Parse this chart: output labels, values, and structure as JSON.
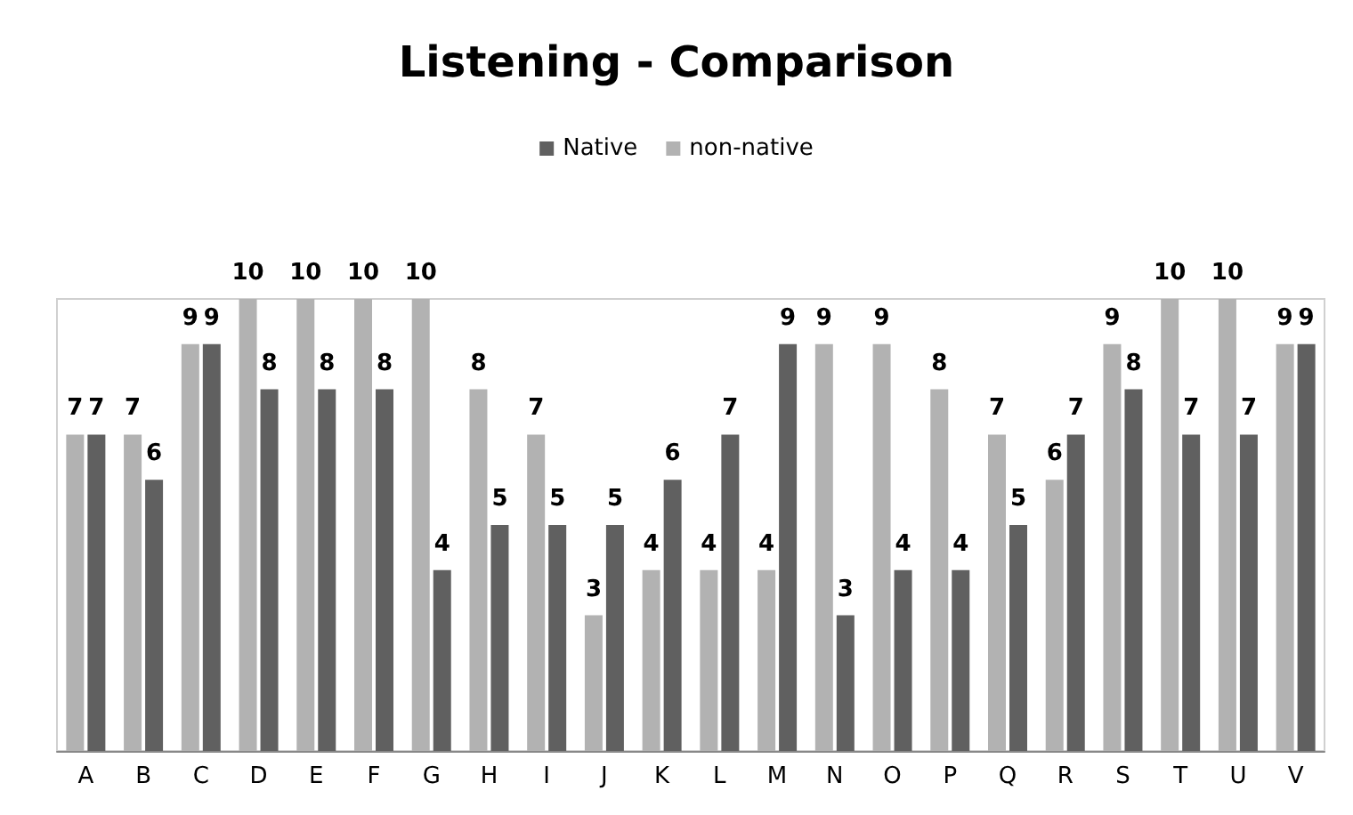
{
  "chart_data": {
    "type": "bar",
    "title": "Listening - Comparison",
    "categories": [
      "A",
      "B",
      "C",
      "D",
      "E",
      "F",
      "G",
      "H",
      "I",
      "J",
      "K",
      "L",
      "M",
      "N",
      "O",
      "P",
      "Q",
      "R",
      "S",
      "T",
      "U",
      "V"
    ],
    "series": [
      {
        "name": "non-native",
        "color": "#b2b2b2",
        "values": [
          7,
          7,
          9,
          10,
          10,
          10,
          10,
          8,
          7,
          3,
          4,
          4,
          4,
          9,
          9,
          8,
          7,
          6,
          9,
          10,
          10,
          9
        ]
      },
      {
        "name": "Native",
        "color": "#606060",
        "values": [
          7,
          6,
          9,
          8,
          8,
          8,
          4,
          5,
          5,
          5,
          6,
          7,
          9,
          3,
          4,
          4,
          5,
          7,
          8,
          7,
          7,
          9
        ]
      }
    ],
    "data_labels": true,
    "legend": "top"
  }
}
